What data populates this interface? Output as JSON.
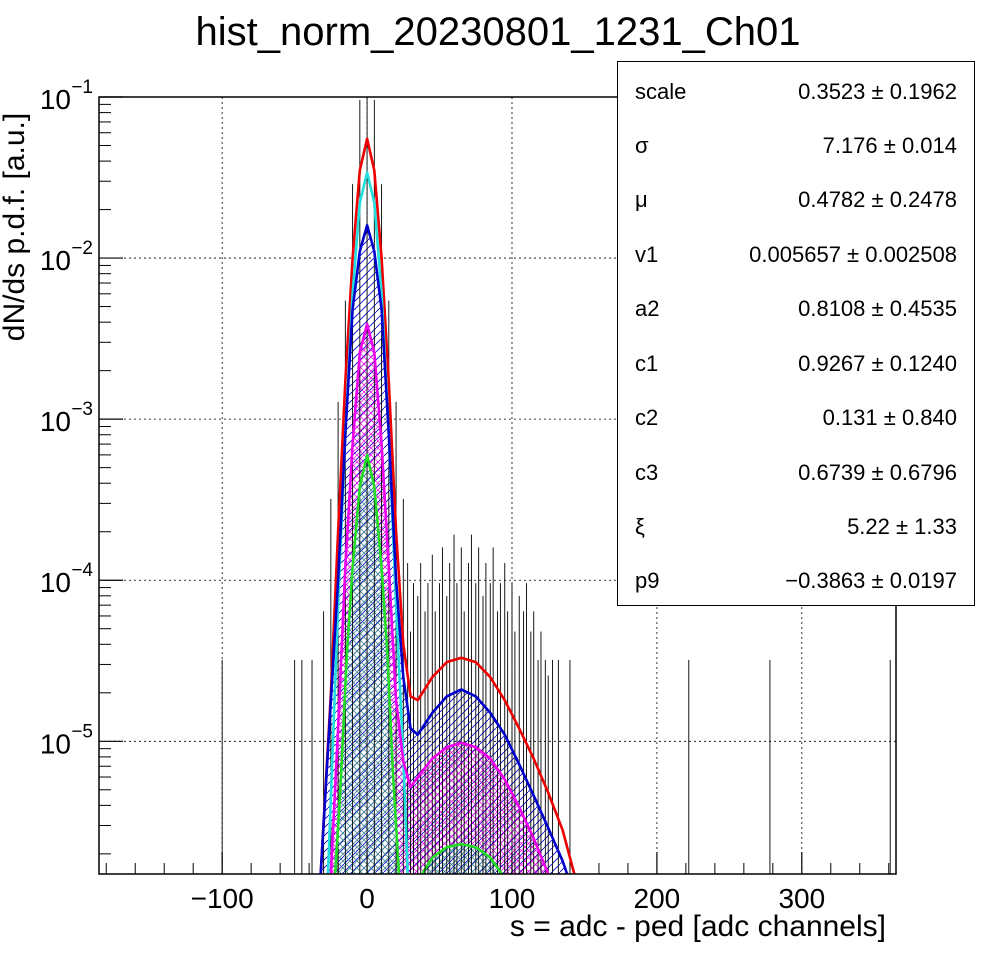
{
  "chart_data": {
    "type": "line",
    "title": "hist_norm_20230801_1231_Ch01",
    "xlabel": "s = adc - ped [adc channels]",
    "ylabel": "dN/ds p.d.f. [a.u.]",
    "xlim": [
      -185,
      365
    ],
    "ylim": [
      1.5e-06,
      0.1
    ],
    "yscale": "log",
    "grid": true,
    "x_ticks": [
      -100,
      0,
      100,
      200,
      300
    ],
    "x_tick_labels": [
      "−100",
      "0",
      "100",
      "200",
      "300"
    ],
    "y_ticks": [
      1e-05,
      0.0001,
      0.001,
      0.01,
      0.1
    ],
    "y_tick_labels": [
      {
        "base": "10",
        "exp": "−5"
      },
      {
        "base": "10",
        "exp": "−4"
      },
      {
        "base": "10",
        "exp": "−3"
      },
      {
        "base": "10",
        "exp": "−2"
      },
      {
        "base": "10",
        "exp": "−1"
      }
    ],
    "series": [
      {
        "color": "#ee0000",
        "fill": "none",
        "points": [
          [
            -32,
            1.5e-06
          ],
          [
            -25,
            2e-05
          ],
          [
            -20,
            0.0002
          ],
          [
            -15,
            0.0017
          ],
          [
            -10,
            0.01
          ],
          [
            -5,
            0.035
          ],
          [
            0,
            0.055
          ],
          [
            5,
            0.035
          ],
          [
            10,
            0.01
          ],
          [
            15,
            0.0017
          ],
          [
            20,
            0.0002
          ],
          [
            25,
            4e-05
          ],
          [
            30,
            1.9e-05
          ],
          [
            35,
            1.8e-05
          ],
          [
            45,
            2.5e-05
          ],
          [
            55,
            3.1e-05
          ],
          [
            65,
            3.3e-05
          ],
          [
            75,
            3.1e-05
          ],
          [
            85,
            2.5e-05
          ],
          [
            95,
            1.8e-05
          ],
          [
            105,
            1.2e-05
          ],
          [
            115,
            7.8e-06
          ],
          [
            125,
            4.8e-06
          ],
          [
            135,
            2.8e-06
          ],
          [
            143,
            1.5e-06
          ]
        ]
      },
      {
        "color": "#22dddd",
        "fill": "none",
        "points": [
          [
            -27,
            1.5e-06
          ],
          [
            -20,
            7e-05
          ],
          [
            -15,
            0.0008
          ],
          [
            -10,
            0.006
          ],
          [
            -5,
            0.022
          ],
          [
            0,
            0.034
          ],
          [
            5,
            0.022
          ],
          [
            10,
            0.006
          ],
          [
            15,
            0.0008
          ],
          [
            20,
            7e-05
          ],
          [
            25,
            8e-06
          ],
          [
            28,
            1.5e-06
          ]
        ]
      },
      {
        "color": "#0000cc",
        "fill": "#0000cc",
        "points": [
          [
            -32,
            1.5e-06
          ],
          [
            -25,
            1.8e-05
          ],
          [
            -20,
            0.0001
          ],
          [
            -15,
            0.0008
          ],
          [
            -10,
            0.0048
          ],
          [
            -5,
            0.011
          ],
          [
            0,
            0.016
          ],
          [
            5,
            0.011
          ],
          [
            10,
            0.0048
          ],
          [
            15,
            0.0008
          ],
          [
            20,
            0.0001
          ],
          [
            25,
            2.5e-05
          ],
          [
            30,
            1.2e-05
          ],
          [
            35,
            1.1e-05
          ],
          [
            45,
            1.5e-05
          ],
          [
            55,
            1.9e-05
          ],
          [
            65,
            2.1e-05
          ],
          [
            75,
            1.9e-05
          ],
          [
            85,
            1.5e-05
          ],
          [
            95,
            1.1e-05
          ],
          [
            105,
            7.2e-06
          ],
          [
            115,
            4.6e-06
          ],
          [
            125,
            2.9e-06
          ],
          [
            135,
            1.8e-06
          ],
          [
            138,
            1.5e-06
          ]
        ]
      },
      {
        "color": "#ee00ee",
        "fill": "#ee00ee",
        "points": [
          [
            -25,
            1.5e-06
          ],
          [
            -20,
            1.2e-05
          ],
          [
            -15,
            0.00012
          ],
          [
            -10,
            0.0007
          ],
          [
            -5,
            0.0026
          ],
          [
            0,
            0.0039
          ],
          [
            5,
            0.0026
          ],
          [
            10,
            0.0007
          ],
          [
            15,
            0.00012
          ],
          [
            20,
            1.8e-05
          ],
          [
            25,
            7.5e-06
          ],
          [
            30,
            5.2e-06
          ],
          [
            35,
            6e-06
          ],
          [
            45,
            7.8e-06
          ],
          [
            55,
            9.2e-06
          ],
          [
            65,
            9.8e-06
          ],
          [
            75,
            9.2e-06
          ],
          [
            85,
            7.8e-06
          ],
          [
            95,
            5.8e-06
          ],
          [
            105,
            3.9e-06
          ],
          [
            115,
            2.5e-06
          ],
          [
            125,
            1.5e-06
          ]
        ]
      },
      {
        "color": "#22dd22",
        "fill": "#22aa88",
        "points": [
          [
            -22,
            1.5e-06
          ],
          [
            -18,
            6e-06
          ],
          [
            -14,
            3.5e-05
          ],
          [
            -10,
            0.00012
          ],
          [
            -5,
            0.00038
          ],
          [
            0,
            0.0006
          ],
          [
            5,
            0.00038
          ],
          [
            10,
            0.00012
          ],
          [
            14,
            3.5e-05
          ],
          [
            18,
            6e-06
          ],
          [
            22,
            1.5e-06
          ]
        ]
      },
      {
        "color": "#22dd22",
        "fill": "#22aa88",
        "points": [
          [
            38,
            1.5e-06
          ],
          [
            45,
            1.9e-06
          ],
          [
            55,
            2.2e-06
          ],
          [
            65,
            2.3e-06
          ],
          [
            75,
            2.2e-06
          ],
          [
            85,
            1.9e-06
          ],
          [
            93,
            1.5e-06
          ]
        ]
      }
    ],
    "data_points": [
      [
        -100,
        1e-05
      ],
      [
        -50,
        1e-05
      ],
      [
        -45,
        1e-05
      ],
      [
        -38,
        1e-05
      ],
      [
        -30,
        2e-05
      ],
      [
        -25,
        0.0001
      ],
      [
        -20,
        0.0004
      ],
      [
        -15,
        0.0017
      ],
      [
        -10,
        0.009
      ],
      [
        -5,
        0.03
      ],
      [
        0,
        0.052
      ],
      [
        5,
        0.03
      ],
      [
        10,
        0.009
      ],
      [
        15,
        0.0017
      ],
      [
        20,
        0.0004
      ],
      [
        25,
        0.0001
      ],
      [
        28,
        4e-05
      ],
      [
        30,
        1.5e-05
      ],
      [
        32,
        3e-05
      ],
      [
        35,
        2.5e-05
      ],
      [
        37,
        4e-05
      ],
      [
        40,
        2e-05
      ],
      [
        42,
        3e-05
      ],
      [
        45,
        4.5e-05
      ],
      [
        47,
        2e-05
      ],
      [
        50,
        3e-05
      ],
      [
        52,
        5e-05
      ],
      [
        55,
        2.5e-05
      ],
      [
        57,
        4e-05
      ],
      [
        60,
        6e-05
      ],
      [
        62,
        3e-05
      ],
      [
        65,
        5e-05
      ],
      [
        67,
        2e-05
      ],
      [
        70,
        4e-05
      ],
      [
        72,
        6e-05
      ],
      [
        75,
        3e-05
      ],
      [
        77,
        5e-05
      ],
      [
        80,
        2.5e-05
      ],
      [
        82,
        4e-05
      ],
      [
        85,
        3e-05
      ],
      [
        87,
        5e-05
      ],
      [
        90,
        2e-05
      ],
      [
        92,
        3e-05
      ],
      [
        95,
        4e-05
      ],
      [
        97,
        2e-05
      ],
      [
        100,
        3e-05
      ],
      [
        102,
        1.5e-05
      ],
      [
        105,
        2.5e-05
      ],
      [
        108,
        2e-05
      ],
      [
        110,
        3e-05
      ],
      [
        113,
        1.5e-05
      ],
      [
        115,
        2e-05
      ],
      [
        118,
        1e-05
      ],
      [
        120,
        1.5e-05
      ],
      [
        123,
        1e-05
      ],
      [
        125,
        8e-06
      ],
      [
        128,
        1e-05
      ],
      [
        132,
        1e-05
      ],
      [
        140,
        1e-05
      ],
      [
        222,
        1e-05
      ],
      [
        278,
        1e-05
      ],
      [
        361,
        1e-05
      ]
    ]
  },
  "stats": [
    {
      "name": "scale",
      "value": "0.3523 ± 0.1962"
    },
    {
      "name": "σ",
      "value": "7.176 ± 0.014"
    },
    {
      "name": "μ",
      "value": "0.4782 ± 0.2478"
    },
    {
      "name": "v1",
      "value": "0.005657 ± 0.002508"
    },
    {
      "name": "a2",
      "value": "0.8108 ± 0.4535"
    },
    {
      "name": "c1",
      "value": "0.9267 ± 0.1240"
    },
    {
      "name": "c2",
      "value": "0.131 ± 0.840"
    },
    {
      "name": "c3",
      "value": "0.6739 ± 0.6796"
    },
    {
      "name": "ξ",
      "value": "5.22 ± 1.33"
    },
    {
      "name": "p9",
      "value": "−0.3863 ± 0.0197"
    }
  ]
}
